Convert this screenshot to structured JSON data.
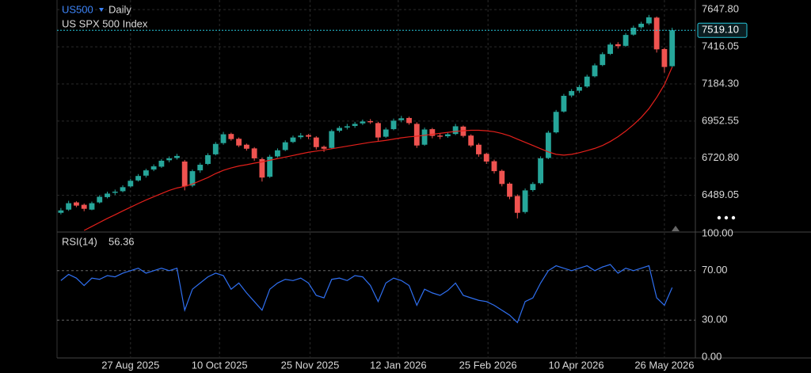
{
  "chart_data": {
    "type": "candlestick",
    "symbol": "US500",
    "interval": "Daily",
    "title": "US SPX 500 Index",
    "up_color": "#26a69a",
    "down_color": "#ef5350",
    "xlim": [
      -0.5,
      82
    ],
    "xticks": [
      {
        "value": 9,
        "label": "27 Aug 2025"
      },
      {
        "value": 20.5,
        "label": "10 Oct 2025"
      },
      {
        "value": 32.2,
        "label": "25 Nov 2025"
      },
      {
        "value": 43.6,
        "label": "12 Jan 2026"
      },
      {
        "value": 55.2,
        "label": "25 Feb 2026"
      },
      {
        "value": 66.6,
        "label": "10 Apr 2026"
      },
      {
        "value": 78,
        "label": "26 May 2026"
      }
    ],
    "ylim": [
      6265,
      7708
    ],
    "yticks": [
      {
        "value": 6489.05,
        "label": "6489.05"
      },
      {
        "value": 6720.8,
        "label": "6720.80"
      },
      {
        "value": 6952.55,
        "label": "6952.55"
      },
      {
        "value": 7184.3,
        "label": "7184.30"
      },
      {
        "value": 7416.05,
        "label": "7416.05"
      },
      {
        "value": 7647.8,
        "label": "7647.80"
      }
    ],
    "grid": true,
    "last_close_label": "7519.10",
    "ohlc": [
      [
        6380,
        6410,
        6370,
        6395
      ],
      [
        6400,
        6455,
        6392,
        6440
      ],
      [
        6445,
        6452,
        6415,
        6425
      ],
      [
        6430,
        6438,
        6390,
        6405
      ],
      [
        6400,
        6450,
        6396,
        6440
      ],
      [
        6445,
        6490,
        6438,
        6480
      ],
      [
        6478,
        6512,
        6470,
        6500
      ],
      [
        6505,
        6525,
        6492,
        6512
      ],
      [
        6515,
        6552,
        6508,
        6540
      ],
      [
        6545,
        6592,
        6538,
        6580
      ],
      [
        6582,
        6622,
        6575,
        6610
      ],
      [
        6612,
        6655,
        6600,
        6645
      ],
      [
        6650,
        6682,
        6640,
        6670
      ],
      [
        6668,
        6715,
        6660,
        6705
      ],
      [
        6708,
        6732,
        6695,
        6720
      ],
      [
        6722,
        6748,
        6712,
        6735
      ],
      [
        6700,
        6710,
        6520,
        6545
      ],
      [
        6550,
        6650,
        6540,
        6640
      ],
      [
        6645,
        6692,
        6630,
        6680
      ],
      [
        6685,
        6752,
        6678,
        6740
      ],
      [
        6745,
        6822,
        6738,
        6810
      ],
      [
        6815,
        6885,
        6805,
        6870
      ],
      [
        6872,
        6880,
        6830,
        6840
      ],
      [
        6842,
        6850,
        6790,
        6800
      ],
      [
        6805,
        6812,
        6768,
        6780
      ],
      [
        6782,
        6790,
        6705,
        6720
      ],
      [
        6715,
        6725,
        6575,
        6600
      ],
      [
        6605,
        6742,
        6598,
        6730
      ],
      [
        6732,
        6782,
        6725,
        6770
      ],
      [
        6772,
        6832,
        6765,
        6820
      ],
      [
        6822,
        6862,
        6815,
        6850
      ],
      [
        6852,
        6878,
        6840,
        6862
      ],
      [
        6865,
        6872,
        6840,
        6855
      ],
      [
        6850,
        6858,
        6775,
        6790
      ],
      [
        6792,
        6800,
        6760,
        6780
      ],
      [
        6785,
        6900,
        6778,
        6890
      ],
      [
        6892,
        6922,
        6882,
        6910
      ],
      [
        6912,
        6935,
        6900,
        6920
      ],
      [
        6922,
        6948,
        6910,
        6935
      ],
      [
        6938,
        6962,
        6928,
        6950
      ],
      [
        6952,
        6965,
        6935,
        6945
      ],
      [
        6940,
        6948,
        6830,
        6850
      ],
      [
        6855,
        6912,
        6848,
        6900
      ],
      [
        6902,
        6968,
        6895,
        6955
      ],
      [
        6958,
        6985,
        6945,
        6970
      ],
      [
        6972,
        6980,
        6930,
        6940
      ],
      [
        6935,
        6945,
        6785,
        6800
      ],
      [
        6805,
        6912,
        6798,
        6900
      ],
      [
        6902,
        6910,
        6845,
        6860
      ],
      [
        6862,
        6875,
        6840,
        6855
      ],
      [
        6858,
        6882,
        6848,
        6870
      ],
      [
        6872,
        6935,
        6865,
        6920
      ],
      [
        6918,
        6925,
        6850,
        6860
      ],
      [
        6862,
        6870,
        6790,
        6800
      ],
      [
        6805,
        6815,
        6730,
        6745
      ],
      [
        6748,
        6755,
        6685,
        6700
      ],
      [
        6702,
        6712,
        6625,
        6640
      ],
      [
        6642,
        6650,
        6545,
        6560
      ],
      [
        6562,
        6570,
        6465,
        6480
      ],
      [
        6485,
        6495,
        6345,
        6380
      ],
      [
        6385,
        6532,
        6375,
        6520
      ],
      [
        6522,
        6572,
        6512,
        6560
      ],
      [
        6565,
        6732,
        6558,
        6720
      ],
      [
        6722,
        6892,
        6715,
        6880
      ],
      [
        6882,
        7022,
        6875,
        7010
      ],
      [
        7012,
        7122,
        7005,
        7110
      ],
      [
        7112,
        7152,
        7100,
        7140
      ],
      [
        7142,
        7178,
        7128,
        7165
      ],
      [
        7168,
        7242,
        7160,
        7230
      ],
      [
        7232,
        7312,
        7225,
        7300
      ],
      [
        7302,
        7382,
        7295,
        7370
      ],
      [
        7372,
        7442,
        7365,
        7430
      ],
      [
        7432,
        7445,
        7405,
        7420
      ],
      [
        7422,
        7502,
        7415,
        7490
      ],
      [
        7492,
        7548,
        7485,
        7535
      ],
      [
        7538,
        7572,
        7528,
        7560
      ],
      [
        7562,
        7615,
        7552,
        7600
      ],
      [
        7598,
        7605,
        7380,
        7400
      ],
      [
        7402,
        7410,
        7255,
        7290
      ],
      [
        7295,
        7535,
        7285,
        7519.1
      ]
    ],
    "moving_average": {
      "color": "#e3201b",
      "values": [
        null,
        null,
        null,
        6270,
        6295,
        6320,
        6345,
        6368,
        6392,
        6415,
        6438,
        6460,
        6480,
        6500,
        6520,
        6535,
        6545,
        6560,
        6580,
        6600,
        6625,
        6645,
        6660,
        6672,
        6680,
        6690,
        6698,
        6708,
        6718,
        6728,
        6738,
        6748,
        6758,
        6765,
        6772,
        6780,
        6788,
        6796,
        6804,
        6812,
        6820,
        6826,
        6832,
        6840,
        6848,
        6854,
        6858,
        6864,
        6870,
        6876,
        6882,
        6888,
        6892,
        6895,
        6895,
        6892,
        6886,
        6875,
        6860,
        6840,
        6820,
        6800,
        6780,
        6760,
        6745,
        6740,
        6745,
        6755,
        6768,
        6782,
        6800,
        6825,
        6855,
        6890,
        6930,
        6975,
        7030,
        7100,
        7180,
        7290
      ]
    },
    "rsi": {
      "name": "RSI(14)",
      "color": "#2f6ff0",
      "ylim": [
        0,
        100
      ],
      "yticks": [
        {
          "value": 0,
          "label": "0.00"
        },
        {
          "value": 30,
          "label": "30.00"
        },
        {
          "value": 70,
          "label": "70.00"
        },
        {
          "value": 100,
          "label": "100.00"
        }
      ],
      "bands": [
        30,
        70
      ],
      "values": [
        62,
        67,
        64,
        58,
        64,
        63,
        66,
        65,
        68,
        70,
        72,
        68,
        70,
        72,
        70,
        72,
        38,
        55,
        60,
        65,
        68,
        66,
        55,
        60,
        52,
        45,
        38,
        55,
        60,
        63,
        62,
        64,
        60,
        50,
        48,
        63,
        64,
        62,
        66,
        65,
        58,
        45,
        60,
        64,
        62,
        58,
        42,
        55,
        52,
        50,
        54,
        60,
        50,
        48,
        46,
        45,
        42,
        38,
        34,
        28,
        45,
        48,
        60,
        70,
        74,
        72,
        70,
        72,
        74,
        70,
        73,
        75,
        68,
        72,
        70,
        72,
        74,
        48,
        42,
        56.36
      ]
    }
  }
}
